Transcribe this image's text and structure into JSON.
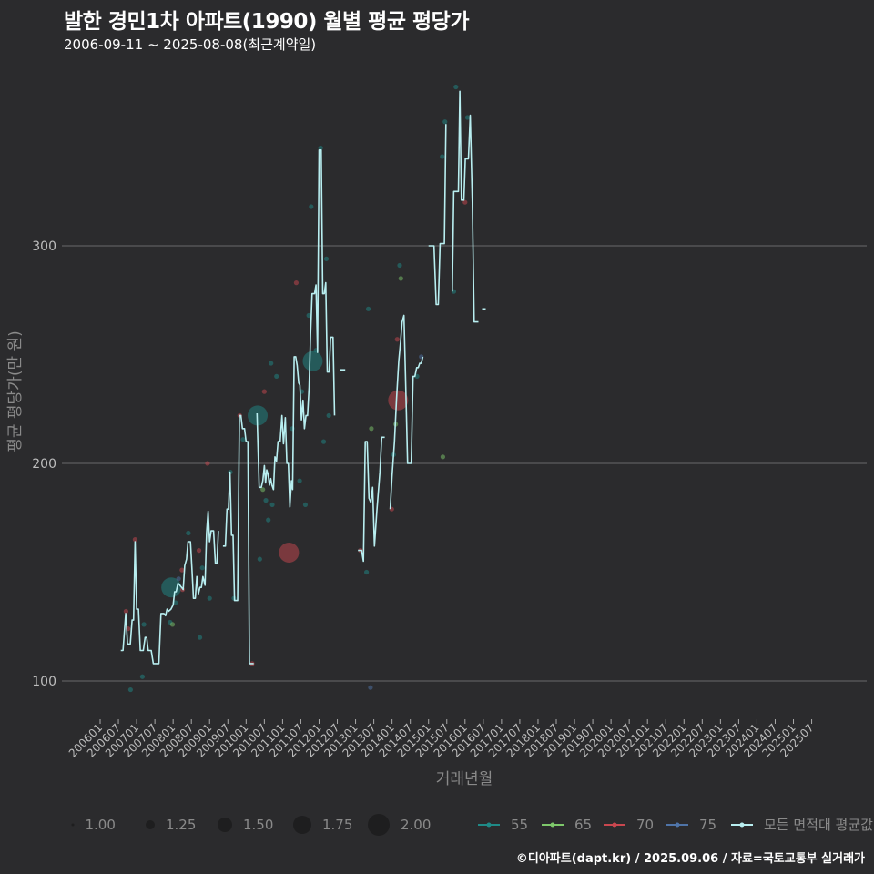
{
  "header": {
    "title": "발한 경민1차 아파트(1990) 월별 평균 평당가",
    "subtitle": "2006-09-11 ~ 2025-08-08(최근계약일)"
  },
  "footer": {
    "credit": "©디아파트(dapt.kr) / 2025.09.06 / 자료=국토교통부 실거래가"
  },
  "chart_data": {
    "type": "line",
    "title": "발한 경민1차 아파트(1990) 월별 평균 평당가",
    "xlabel": "거래년월",
    "ylabel": "평균 평당가(만 원)",
    "ylim": [
      75,
      380
    ],
    "yticks": [
      100,
      200,
      300
    ],
    "xticks": [
      "200601",
      "200607",
      "200701",
      "200707",
      "200801",
      "200807",
      "200901",
      "200907",
      "201001",
      "201007",
      "201101",
      "201107",
      "201201",
      "201207",
      "201301",
      "201307",
      "201401",
      "201407",
      "201501",
      "201507",
      "201601",
      "201607",
      "201701",
      "201707",
      "201801",
      "201807",
      "201901",
      "201907",
      "202001",
      "202007",
      "202101",
      "202107",
      "202201",
      "202207",
      "202301",
      "202307",
      "202401",
      "202407",
      "202501",
      "202507"
    ],
    "colors": {
      "55": "#1f8a87",
      "65": "#7ec86b",
      "70": "#c9474f",
      "75": "#4f74a8",
      "all": "#b8eef0"
    },
    "legend": {
      "sizes": [
        "1.00",
        "1.25",
        "1.50",
        "1.75",
        "2.00"
      ],
      "areas": [
        "55",
        "65",
        "70",
        "75",
        "모든 면적대 평균값"
      ]
    },
    "series": [
      {
        "name": "모든 면적대 평균값",
        "segments": [
          [
            [
              6.8,
              114
            ],
            [
              7.5,
              114
            ],
            [
              8.4,
              131
            ],
            [
              9.0,
              117
            ],
            [
              9.9,
              117
            ],
            [
              10.5,
              128
            ],
            [
              11.0,
              128
            ],
            [
              11.5,
              164
            ],
            [
              12.0,
              133
            ],
            [
              12.6,
              133
            ],
            [
              13.2,
              114
            ],
            [
              14.2,
              114
            ],
            [
              14.8,
              120
            ],
            [
              15.3,
              120
            ],
            [
              15.8,
              114
            ],
            [
              16.8,
              114
            ],
            [
              17.5,
              108
            ],
            [
              19.3,
              108
            ],
            [
              20.0,
              131
            ],
            [
              21.0,
              131
            ],
            [
              21.5,
              130
            ],
            [
              22.0,
              133
            ],
            [
              22.5,
              132
            ],
            [
              23.3,
              133
            ],
            [
              24.0,
              135
            ],
            [
              24.5,
              141
            ],
            [
              25.0,
              141
            ],
            [
              25.6,
              145
            ],
            [
              26.2,
              144
            ],
            [
              26.8,
              143
            ],
            [
              27.3,
              142
            ],
            [
              27.8,
              153
            ],
            [
              28.4,
              156
            ],
            [
              28.9,
              164
            ],
            [
              29.7,
              164
            ],
            [
              30.2,
              151
            ],
            [
              30.7,
              138
            ],
            [
              31.3,
              138
            ],
            [
              31.8,
              148
            ],
            [
              32.3,
              140
            ],
            [
              32.8,
              143
            ],
            [
              33.3,
              143
            ],
            [
              33.8,
              148
            ],
            [
              34.5,
              144
            ],
            [
              35.0,
              168
            ],
            [
              35.5,
              178
            ],
            [
              36.0,
              164
            ],
            [
              36.5,
              169
            ],
            [
              37.3,
              169
            ],
            [
              37.9,
              154
            ],
            [
              38.4,
              154
            ],
            [
              38.9,
              169
            ]
          ],
          [
            [
              40.4,
              162
            ],
            [
              41.2,
              162
            ],
            [
              41.7,
              179
            ],
            [
              42.2,
              179
            ],
            [
              42.7,
              196
            ],
            [
              43.2,
              167
            ],
            [
              43.7,
              167
            ],
            [
              44.2,
              137
            ],
            [
              45.2,
              137
            ],
            [
              45.8,
              222
            ],
            [
              46.3,
              222
            ],
            [
              46.8,
              216
            ],
            [
              47.5,
              216
            ],
            [
              48.0,
              210
            ],
            [
              48.6,
              210
            ],
            [
              49.1,
              108
            ],
            [
              50.5,
              108
            ]
          ],
          [
            [
              51.6,
              223
            ],
            [
              52.3,
              189
            ],
            [
              53.0,
              189
            ],
            [
              53.5,
              192
            ],
            [
              54.0,
              199
            ],
            [
              54.4,
              191
            ],
            [
              54.8,
              197
            ],
            [
              55.2,
              195
            ],
            [
              55.7,
              190
            ],
            [
              56.1,
              193
            ],
            [
              56.5,
              190
            ],
            [
              57.0,
              188
            ],
            [
              57.5,
              203
            ],
            [
              58.0,
              201
            ],
            [
              58.5,
              210
            ],
            [
              59.2,
              210
            ],
            [
              59.8,
              222
            ],
            [
              60.3,
              209
            ],
            [
              60.9,
              221
            ],
            [
              61.4,
              200
            ],
            [
              61.9,
              200
            ],
            [
              62.4,
              180
            ],
            [
              62.9,
              192
            ],
            [
              63.3,
              188
            ],
            [
              63.8,
              249
            ],
            [
              64.3,
              249
            ],
            [
              64.8,
              245
            ],
            [
              65.3,
              237
            ],
            [
              65.7,
              236
            ],
            [
              66.2,
              220
            ],
            [
              66.7,
              229
            ],
            [
              67.2,
              216
            ],
            [
              67.7,
              222
            ],
            [
              68.2,
              222
            ],
            [
              68.7,
              235
            ],
            [
              69.2,
              259
            ],
            [
              69.7,
              278
            ],
            [
              70.5,
              278
            ],
            [
              71.0,
              282
            ],
            [
              71.5,
              251
            ],
            [
              72.0,
              344
            ],
            [
              72.7,
              344
            ],
            [
              73.2,
              278
            ],
            [
              73.7,
              278
            ],
            [
              74.2,
              283
            ],
            [
              74.7,
              242
            ],
            [
              75.3,
              242
            ],
            [
              75.8,
              258
            ],
            [
              76.6,
              258
            ],
            [
              77.1,
              222
            ]
          ],
          [
            [
              78.8,
              243
            ],
            [
              80.6,
              243
            ]
          ],
          [
            [
              84.8,
              160
            ],
            [
              86.0,
              160
            ],
            [
              86.6,
              155
            ],
            [
              87.2,
              210
            ],
            [
              87.8,
              210
            ],
            [
              88.4,
              184
            ],
            [
              89.0,
              182
            ],
            [
              89.6,
              189
            ],
            [
              90.2,
              162
            ],
            [
              91.0,
              178
            ],
            [
              92.0,
              196
            ],
            [
              92.6,
              212
            ],
            [
              93.6,
              212
            ]
          ],
          [
            [
              95.4,
              179
            ],
            [
              96.0,
              194
            ],
            [
              96.8,
              210
            ],
            [
              97.5,
              230
            ],
            [
              98.2,
              247
            ],
            [
              98.8,
              256
            ],
            [
              99.3,
              265
            ],
            [
              99.9,
              268
            ],
            [
              100.5,
              235
            ],
            [
              101.1,
              200
            ],
            [
              102.3,
              200
            ],
            [
              102.9,
              240
            ],
            [
              103.5,
              240
            ],
            [
              104.1,
              244
            ],
            [
              104.6,
              244
            ],
            [
              105.1,
              246
            ],
            [
              105.6,
              246
            ],
            [
              106.1,
              249
            ]
          ],
          [
            [
              108.0,
              300
            ],
            [
              109.8,
              300
            ],
            [
              110.5,
              273
            ],
            [
              111.2,
              273
            ],
            [
              111.8,
              301
            ],
            [
              113.2,
              301
            ],
            [
              113.7,
              356
            ]
          ],
          [
            [
              115.8,
              279
            ],
            [
              116.3,
              325
            ],
            [
              117.8,
              325
            ],
            [
              118.3,
              371
            ],
            [
              118.8,
              321
            ],
            [
              119.6,
              321
            ],
            [
              120.1,
              340
            ],
            [
              121.1,
              340
            ],
            [
              121.7,
              360
            ],
            [
              122.4,
              320
            ],
            [
              123.0,
              265
            ],
            [
              124.4,
              265
            ]
          ],
          [
            [
              125.6,
              271
            ],
            [
              126.8,
              271
            ]
          ]
        ]
      }
    ],
    "points": [
      {
        "x": 8.5,
        "y": 132,
        "a": "70",
        "s": 1.0
      },
      {
        "x": 9.2,
        "y": 124,
        "a": "70",
        "s": 1.0
      },
      {
        "x": 10.0,
        "y": 96,
        "a": "55",
        "s": 1.0
      },
      {
        "x": 11.5,
        "y": 165,
        "a": "70",
        "s": 1.0
      },
      {
        "x": 13.9,
        "y": 102,
        "a": "55",
        "s": 1.0
      },
      {
        "x": 14.4,
        "y": 126,
        "a": "55",
        "s": 1.0
      },
      {
        "x": 23.4,
        "y": 143,
        "a": "55",
        "s": 1.6
      },
      {
        "x": 23.0,
        "y": 127,
        "a": "55",
        "s": 1.0
      },
      {
        "x": 23.8,
        "y": 126,
        "a": "65",
        "s": 1.0
      },
      {
        "x": 24.8,
        "y": 136,
        "a": "55",
        "s": 1.0
      },
      {
        "x": 25.8,
        "y": 147,
        "a": "75",
        "s": 1.0
      },
      {
        "x": 26.9,
        "y": 151,
        "a": "70",
        "s": 1.0
      },
      {
        "x": 27.1,
        "y": 142,
        "a": "70",
        "s": 1.0
      },
      {
        "x": 29.0,
        "y": 168,
        "a": "55",
        "s": 1.0
      },
      {
        "x": 32.5,
        "y": 160,
        "a": "70",
        "s": 1.0
      },
      {
        "x": 32.8,
        "y": 120,
        "a": "55",
        "s": 1.0
      },
      {
        "x": 33.6,
        "y": 152,
        "a": "55",
        "s": 1.0
      },
      {
        "x": 35.3,
        "y": 200,
        "a": "70",
        "s": 1.0
      },
      {
        "x": 36.0,
        "y": 138,
        "a": "55",
        "s": 1.0
      },
      {
        "x": 42.8,
        "y": 196,
        "a": "55",
        "s": 1.0
      },
      {
        "x": 44.0,
        "y": 138,
        "a": "55",
        "s": 1.0
      },
      {
        "x": 45.9,
        "y": 222,
        "a": "70",
        "s": 1.0
      },
      {
        "x": 47.0,
        "y": 211,
        "a": "55",
        "s": 1.0
      },
      {
        "x": 50.0,
        "y": 108,
        "a": "70",
        "s": 1.0
      },
      {
        "x": 51.8,
        "y": 222,
        "a": "55",
        "s": 1.6
      },
      {
        "x": 52.5,
        "y": 156,
        "a": "55",
        "s": 1.0
      },
      {
        "x": 53.5,
        "y": 188,
        "a": "65",
        "s": 1.0
      },
      {
        "x": 54.0,
        "y": 233,
        "a": "70",
        "s": 1.0
      },
      {
        "x": 54.5,
        "y": 183,
        "a": "55",
        "s": 1.0
      },
      {
        "x": 55.3,
        "y": 174,
        "a": "55",
        "s": 1.0
      },
      {
        "x": 56.2,
        "y": 246,
        "a": "55",
        "s": 1.0
      },
      {
        "x": 56.6,
        "y": 181,
        "a": "55",
        "s": 1.0
      },
      {
        "x": 58.0,
        "y": 240,
        "a": "55",
        "s": 1.0
      },
      {
        "x": 62.1,
        "y": 159,
        "a": "70",
        "s": 1.6
      },
      {
        "x": 63.2,
        "y": 216,
        "a": "55",
        "s": 1.0
      },
      {
        "x": 64.5,
        "y": 283,
        "a": "70",
        "s": 1.0
      },
      {
        "x": 65.6,
        "y": 192,
        "a": "55",
        "s": 1.0
      },
      {
        "x": 66.3,
        "y": 233,
        "a": "55",
        "s": 1.0
      },
      {
        "x": 67.5,
        "y": 181,
        "a": "55",
        "s": 1.0
      },
      {
        "x": 68.6,
        "y": 268,
        "a": "55",
        "s": 1.0
      },
      {
        "x": 69.4,
        "y": 318,
        "a": "55",
        "s": 1.0
      },
      {
        "x": 69.9,
        "y": 247,
        "a": "55",
        "s": 1.6
      },
      {
        "x": 71.0,
        "y": 252,
        "a": "55",
        "s": 1.0
      },
      {
        "x": 72.5,
        "y": 345,
        "a": "55",
        "s": 1.0
      },
      {
        "x": 73.5,
        "y": 210,
        "a": "55",
        "s": 1.0
      },
      {
        "x": 74.4,
        "y": 294,
        "a": "55",
        "s": 1.0
      },
      {
        "x": 75.2,
        "y": 222,
        "a": "55",
        "s": 1.0
      },
      {
        "x": 85.6,
        "y": 160,
        "a": "70",
        "s": 1.0
      },
      {
        "x": 87.6,
        "y": 150,
        "a": "55",
        "s": 1.0
      },
      {
        "x": 88.2,
        "y": 271,
        "a": "55",
        "s": 1.0
      },
      {
        "x": 88.9,
        "y": 97,
        "a": "75",
        "s": 1.0
      },
      {
        "x": 89.2,
        "y": 216,
        "a": "65",
        "s": 1.0
      },
      {
        "x": 95.9,
        "y": 179,
        "a": "70",
        "s": 1.0
      },
      {
        "x": 96.5,
        "y": 204,
        "a": "55",
        "s": 1.0
      },
      {
        "x": 97.2,
        "y": 218,
        "a": "65",
        "s": 1.0
      },
      {
        "x": 97.7,
        "y": 257,
        "a": "70",
        "s": 1.0
      },
      {
        "x": 98.0,
        "y": 229,
        "a": "70",
        "s": 1.6
      },
      {
        "x": 98.5,
        "y": 291,
        "a": "55",
        "s": 1.0
      },
      {
        "x": 98.9,
        "y": 285,
        "a": "65",
        "s": 1.0
      },
      {
        "x": 105.6,
        "y": 249,
        "a": "75",
        "s": 1.0
      },
      {
        "x": 104.2,
        "y": 240,
        "a": "55",
        "s": 1.0
      },
      {
        "x": 112.5,
        "y": 341,
        "a": "55",
        "s": 1.0
      },
      {
        "x": 112.7,
        "y": 203,
        "a": "65",
        "s": 1.0
      },
      {
        "x": 113.4,
        "y": 357,
        "a": "55",
        "s": 1.0
      },
      {
        "x": 116.3,
        "y": 279,
        "a": "55",
        "s": 1.0
      },
      {
        "x": 117.0,
        "y": 373,
        "a": "55",
        "s": 1.0
      },
      {
        "x": 120.0,
        "y": 320,
        "a": "70",
        "s": 1.0
      },
      {
        "x": 120.8,
        "y": 359,
        "a": "55",
        "s": 1.0
      }
    ]
  }
}
